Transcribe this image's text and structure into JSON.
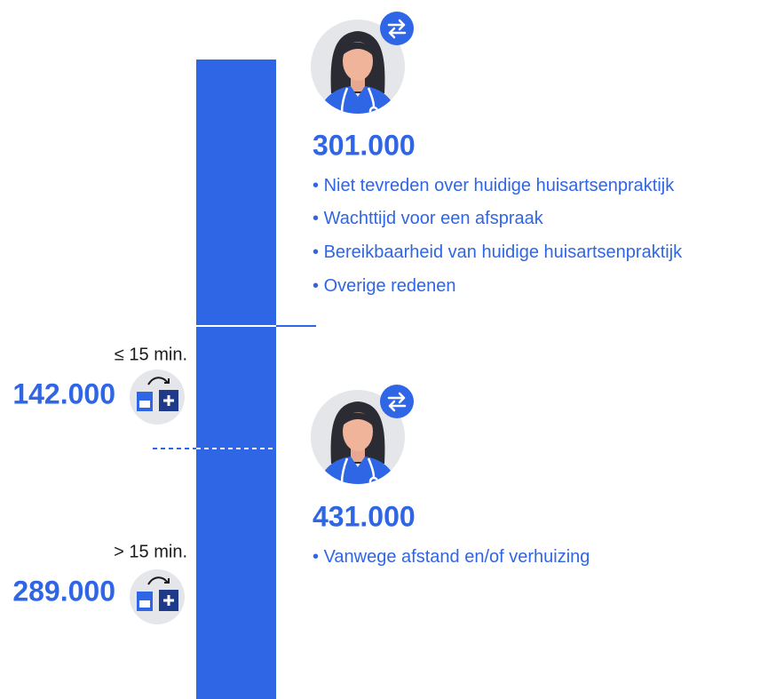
{
  "groups": [
    {
      "value": "301.000",
      "reasons": [
        "Niet tevreden over huidige huisartsenpraktijk",
        "Wachttijd voor een afspraak",
        "Bereikbaarheid van huidige huisartsenpraktijk",
        "Overige redenen"
      ]
    },
    {
      "value": "431.000",
      "reasons": [
        "Vanwege afstand en/of verhuizing"
      ]
    }
  ],
  "distance": [
    {
      "label": "≤ 15 min.",
      "value": "142.000"
    },
    {
      "label": "> 15 min.",
      "value": "289.000"
    }
  ]
}
